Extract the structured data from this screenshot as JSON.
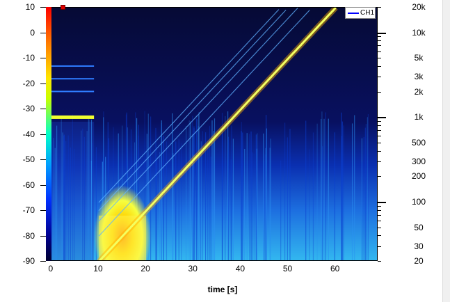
{
  "chart_data": {
    "type": "heatmap",
    "title": "",
    "xlabel": "time [s]",
    "ylabel": "",
    "x_ticks": [
      "0",
      "10",
      "20",
      "30",
      "40",
      "50",
      "60"
    ],
    "x_tick_values": [
      0,
      10,
      20,
      30,
      40,
      50,
      60
    ],
    "xlim": [
      -1,
      69
    ],
    "left_ticks": [
      "10",
      "0",
      "-10",
      "-20",
      "-30",
      "-40",
      "-50",
      "-60",
      "-70",
      "-80",
      "-90"
    ],
    "left_tick_values": [
      10,
      0,
      -10,
      -20,
      -30,
      -40,
      -50,
      -60,
      -70,
      -80,
      -90
    ],
    "left_lim": [
      -90,
      10
    ],
    "right_ticks": [
      "20k",
      "10k",
      "5k",
      "3k",
      "2k",
      "1k",
      "500",
      "300",
      "200",
      "100",
      "50",
      "30",
      "20"
    ],
    "right_tick_values": [
      20000,
      10000,
      5000,
      3000,
      2000,
      1000,
      500,
      300,
      200,
      100,
      50,
      30,
      20
    ],
    "right_lim": [
      20,
      20000
    ],
    "right_scale": "log",
    "colormap": [
      "#ff0000",
      "#ff7a00",
      "#ffe600",
      "#c8ff00",
      "#00ffc8",
      "#00a0ff",
      "#0030ff",
      "#000090",
      "#000030"
    ],
    "series": [
      {
        "name": "CH1",
        "color": "#0000ff"
      }
    ],
    "legend_position": "top-right",
    "sweep": {
      "start_time_s": 10,
      "end_time_s": 60,
      "start_freq_hz": 20,
      "end_freq_hz": 20000,
      "harmonics": [
        1,
        2,
        3,
        4,
        5
      ]
    },
    "reference_tones": [
      {
        "freq_hz": 1000,
        "level_db": -33,
        "t_start_s": 0,
        "t_end_s": 9
      },
      {
        "freq_hz": 2000,
        "level_db": -23,
        "t_start_s": 0,
        "t_end_s": 9
      },
      {
        "freq_hz": 3000,
        "level_db": -18,
        "t_start_s": 0,
        "t_end_s": 9
      },
      {
        "freq_hz": 4000,
        "level_db": -13,
        "t_start_s": 0,
        "t_end_s": 9
      }
    ]
  }
}
